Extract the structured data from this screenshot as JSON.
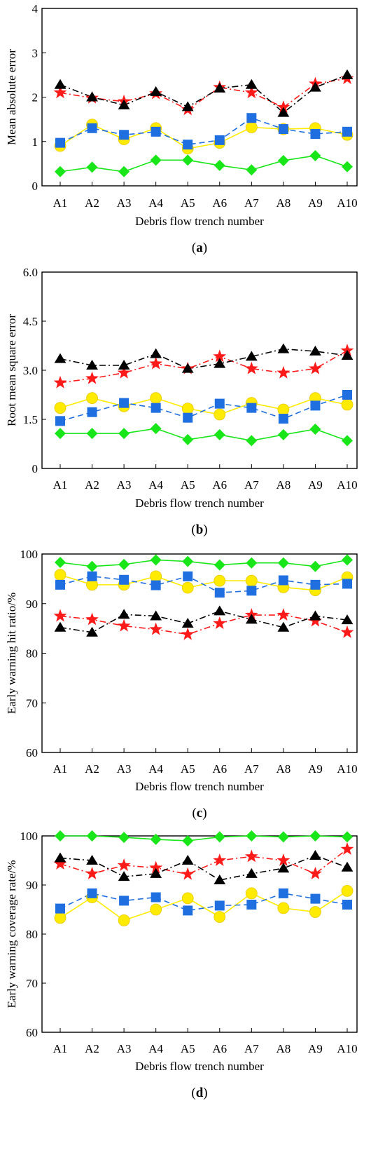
{
  "colors": {
    "black_series": "#000000",
    "red_series": "#ff1a1a",
    "blue_series": "#1f6fe0",
    "yellow_series": "#ffeb00",
    "green_series": "#19e619",
    "yellow_marker_stroke": "#e8c800"
  },
  "chart_data": [
    {
      "type": "line",
      "panel_label": "(a)",
      "xlabel": "Debris flow trench number",
      "ylabel": "Mean absolute error",
      "categories": [
        "A1",
        "A2",
        "A3",
        "A4",
        "A5",
        "A6",
        "A7",
        "A8",
        "A9",
        "A10"
      ],
      "ylim": [
        0,
        4
      ],
      "yticks": [
        "0",
        "1",
        "2",
        "3",
        "4"
      ],
      "ytick_values": [
        0,
        1,
        2,
        3,
        4
      ],
      "grid": false,
      "series": [
        {
          "marker": "triangle",
          "line": "dash-dot",
          "color": "#000000",
          "values": [
            2.28,
            2.0,
            1.82,
            2.12,
            1.78,
            2.2,
            2.28,
            1.65,
            2.22,
            2.5
          ]
        },
        {
          "marker": "star",
          "line": "dash-dot",
          "color": "#ff1a1a",
          "values": [
            2.1,
            1.98,
            1.9,
            2.08,
            1.72,
            2.22,
            2.1,
            1.77,
            2.3,
            2.42
          ]
        },
        {
          "marker": "square",
          "line": "dash",
          "color": "#1f6fe0",
          "values": [
            0.97,
            1.3,
            1.15,
            1.22,
            0.93,
            1.03,
            1.53,
            1.28,
            1.17,
            1.22
          ]
        },
        {
          "marker": "circle",
          "line": "solid",
          "color": "#ffeb00",
          "values": [
            0.9,
            1.38,
            1.05,
            1.3,
            0.84,
            0.97,
            1.32,
            1.28,
            1.3,
            1.15
          ]
        },
        {
          "marker": "diamond",
          "line": "solid",
          "color": "#19e619",
          "values": [
            0.32,
            0.42,
            0.32,
            0.58,
            0.58,
            0.46,
            0.36,
            0.57,
            0.68,
            0.43
          ]
        }
      ]
    },
    {
      "type": "line",
      "panel_label": "(b)",
      "xlabel": "Debris flow trench number",
      "ylabel": "Root mean square error",
      "categories": [
        "A1",
        "A2",
        "A3",
        "A4",
        "A5",
        "A6",
        "A7",
        "A8",
        "A9",
        "A10"
      ],
      "ylim": [
        0,
        6
      ],
      "yticks": [
        "0",
        "1.5",
        "3.0",
        "4.5",
        "6.0"
      ],
      "ytick_values": [
        0,
        1.5,
        3.0,
        4.5,
        6.0
      ],
      "grid": false,
      "series": [
        {
          "marker": "triangle",
          "line": "dash-dot",
          "color": "#000000",
          "values": [
            3.35,
            3.15,
            3.15,
            3.5,
            3.05,
            3.2,
            3.42,
            3.65,
            3.58,
            3.45
          ]
        },
        {
          "marker": "star",
          "line": "dash-dot",
          "color": "#ff1a1a",
          "values": [
            2.62,
            2.75,
            2.92,
            3.2,
            3.05,
            3.42,
            3.05,
            2.92,
            3.05,
            3.6
          ]
        },
        {
          "marker": "square",
          "line": "dash",
          "color": "#1f6fe0",
          "values": [
            1.45,
            1.72,
            2.0,
            1.85,
            1.55,
            1.98,
            1.85,
            1.52,
            1.92,
            2.25
          ]
        },
        {
          "marker": "circle",
          "line": "solid",
          "color": "#ffeb00",
          "values": [
            1.85,
            2.15,
            1.9,
            2.15,
            1.83,
            1.65,
            2.0,
            1.8,
            2.15,
            1.95
          ]
        },
        {
          "marker": "diamond",
          "line": "solid",
          "color": "#19e619",
          "values": [
            1.07,
            1.07,
            1.07,
            1.22,
            0.88,
            1.03,
            0.85,
            1.03,
            1.2,
            0.85
          ]
        }
      ]
    },
    {
      "type": "line",
      "panel_label": "(c)",
      "xlabel": "Debris flow trench number",
      "ylabel": "Early warning hit ratio/%",
      "categories": [
        "A1",
        "A2",
        "A3",
        "A4",
        "A5",
        "A6",
        "A7",
        "A8",
        "A9",
        "A10"
      ],
      "ylim": [
        60,
        100
      ],
      "yticks": [
        "60",
        "70",
        "80",
        "90",
        "100"
      ],
      "ytick_values": [
        60,
        70,
        80,
        90,
        100
      ],
      "grid": false,
      "series": [
        {
          "marker": "triangle",
          "line": "dash-dot",
          "color": "#000000",
          "values": [
            85.2,
            84.2,
            87.8,
            87.5,
            86.0,
            88.5,
            86.8,
            85.2,
            87.5,
            86.7
          ]
        },
        {
          "marker": "star",
          "line": "dash-dot",
          "color": "#ff1a1a",
          "values": [
            87.5,
            86.8,
            85.5,
            84.8,
            83.8,
            86.0,
            87.7,
            87.7,
            86.5,
            84.2
          ]
        },
        {
          "marker": "square",
          "line": "dash",
          "color": "#1f6fe0",
          "values": [
            93.8,
            95.5,
            94.8,
            93.7,
            95.5,
            92.2,
            92.6,
            94.7,
            93.8,
            94.0
          ]
        },
        {
          "marker": "circle",
          "line": "solid",
          "color": "#ffeb00",
          "values": [
            95.8,
            93.8,
            93.8,
            95.5,
            93.2,
            94.6,
            94.6,
            93.3,
            92.7,
            95.3
          ]
        },
        {
          "marker": "diamond",
          "line": "solid",
          "color": "#19e619",
          "values": [
            98.3,
            97.5,
            97.9,
            98.8,
            98.5,
            97.8,
            98.2,
            98.2,
            97.5,
            98.8
          ]
        }
      ]
    },
    {
      "type": "line",
      "panel_label": "(d)",
      "xlabel": "Debris flow trench number",
      "ylabel": "Early warning coverage rate/%",
      "categories": [
        "A1",
        "A2",
        "A3",
        "A4",
        "A5",
        "A6",
        "A7",
        "A8",
        "A9",
        "A10"
      ],
      "ylim": [
        60,
        100
      ],
      "yticks": [
        "60",
        "70",
        "80",
        "90",
        "100"
      ],
      "ytick_values": [
        60,
        70,
        80,
        90,
        100
      ],
      "grid": false,
      "series": [
        {
          "marker": "triangle",
          "line": "dash-dot",
          "color": "#000000",
          "values": [
            95.5,
            95.0,
            91.7,
            92.3,
            95.0,
            91.0,
            92.3,
            93.4,
            96.0,
            93.6
          ]
        },
        {
          "marker": "star",
          "line": "dash-dot",
          "color": "#ff1a1a",
          "values": [
            94.3,
            92.3,
            94.0,
            93.5,
            92.2,
            95.0,
            95.8,
            95.0,
            92.3,
            97.3
          ]
        },
        {
          "marker": "square",
          "line": "dash",
          "color": "#1f6fe0",
          "values": [
            85.2,
            88.3,
            86.8,
            87.5,
            84.8,
            85.8,
            86.0,
            88.3,
            87.2,
            86.0
          ]
        },
        {
          "marker": "circle",
          "line": "solid",
          "color": "#ffeb00",
          "values": [
            83.3,
            87.5,
            82.8,
            85.0,
            87.3,
            83.5,
            88.3,
            85.3,
            84.5,
            88.8
          ]
        },
        {
          "marker": "diamond",
          "line": "solid",
          "color": "#19e619",
          "values": [
            100.0,
            100.0,
            99.7,
            99.3,
            99.0,
            99.8,
            100.0,
            99.8,
            100.0,
            99.8
          ]
        }
      ]
    }
  ]
}
